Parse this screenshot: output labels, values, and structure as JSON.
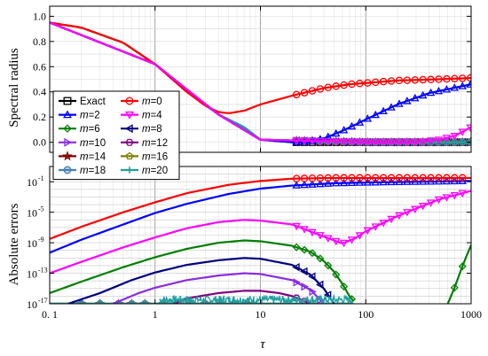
{
  "chart_data": [
    {
      "type": "line",
      "panel": "top",
      "ylabel": "Spectral radius",
      "xscale": "log",
      "xlim": [
        0.1,
        1000
      ],
      "ylim": [
        -0.08,
        1.08
      ],
      "yticks": [
        0.0,
        0.2,
        0.4,
        0.6,
        0.8,
        1.0
      ],
      "ytick_labels": [
        "0.0",
        "0.2",
        "0.4",
        "0.6",
        "0.8",
        "1.0"
      ],
      "grid": true,
      "series": [
        {
          "name": "Exact",
          "color": "#000000",
          "marker": "square",
          "x": [
            0.1,
            0.2,
            0.5,
            1,
            2,
            4,
            7,
            10,
            20,
            50,
            100,
            1000
          ],
          "y": [
            0.95,
            0.91,
            0.79,
            0.62,
            0.4,
            0.22,
            0.12,
            0.02,
            0.0,
            0.0,
            0.0,
            0.0
          ]
        },
        {
          "name": "m=0",
          "color": "#ff0000",
          "marker": "circle",
          "x": [
            0.1,
            0.2,
            0.5,
            1,
            2,
            3,
            4,
            5,
            7,
            10,
            20,
            40,
            70,
            100,
            200,
            500,
            1000
          ],
          "y": [
            0.95,
            0.91,
            0.79,
            0.62,
            0.4,
            0.29,
            0.24,
            0.23,
            0.25,
            0.3,
            0.37,
            0.43,
            0.46,
            0.47,
            0.49,
            0.5,
            0.51
          ]
        },
        {
          "name": "m=2",
          "color": "#0000ff",
          "marker": "triangle-up",
          "x": [
            0.1,
            1,
            4,
            10,
            20,
            30,
            40,
            60,
            100,
            200,
            400,
            1000
          ],
          "y": [
            0.95,
            0.62,
            0.22,
            0.02,
            0.0,
            0.01,
            0.03,
            0.09,
            0.18,
            0.3,
            0.39,
            0.46
          ]
        },
        {
          "name": "m=4",
          "color": "#ff00ff",
          "marker": "triangle-down",
          "x": [
            0.1,
            1,
            4,
            10,
            100,
            300,
            500,
            700,
            1000
          ],
          "y": [
            0.95,
            0.62,
            0.22,
            0.02,
            0.0,
            0.0,
            0.02,
            0.05,
            0.12
          ]
        },
        {
          "name": "m=6",
          "color": "#008000",
          "marker": "diamond",
          "x": [
            0.1,
            1,
            4,
            10,
            100,
            1000
          ],
          "y": [
            0.95,
            0.62,
            0.22,
            0.02,
            0.0,
            0.0
          ]
        },
        {
          "name": "m=8",
          "color": "#000080",
          "marker": "triangle-left",
          "x": [
            0.1,
            1,
            4,
            10,
            100,
            1000
          ],
          "y": [
            0.95,
            0.62,
            0.22,
            0.02,
            0.0,
            0.0
          ]
        },
        {
          "name": "m=10",
          "color": "#8a2be2",
          "marker": "triangle-right",
          "x": [
            0.1,
            1,
            4,
            10,
            100,
            1000
          ],
          "y": [
            0.95,
            0.62,
            0.22,
            0.02,
            0.0,
            0.0
          ]
        },
        {
          "name": "m=12",
          "color": "#800080",
          "marker": "hexagon",
          "x": [
            0.1,
            1,
            4,
            10,
            100,
            1000
          ],
          "y": [
            0.95,
            0.62,
            0.22,
            0.02,
            0.0,
            0.0
          ]
        },
        {
          "name": "m=14",
          "color": "#800000",
          "marker": "star",
          "x": [
            0.1,
            1,
            4,
            10,
            100,
            1000
          ],
          "y": [
            0.95,
            0.62,
            0.22,
            0.02,
            0.0,
            0.0
          ]
        },
        {
          "name": "m=16",
          "color": "#808000",
          "marker": "pentagon",
          "x": [
            0.1,
            1,
            4,
            10,
            100,
            1000
          ],
          "y": [
            0.95,
            0.62,
            0.22,
            0.02,
            0.0,
            0.0
          ]
        },
        {
          "name": "m=18",
          "color": "#4682b4",
          "marker": "circle-dot",
          "x": [
            0.1,
            1,
            4,
            10,
            100,
            1000
          ],
          "y": [
            0.95,
            0.62,
            0.22,
            0.02,
            0.0,
            0.0
          ]
        },
        {
          "name": "m=20",
          "color": "#20a0a0",
          "marker": "cross",
          "x": [
            0.1,
            0.2,
            0.5,
            1,
            2,
            4,
            7,
            10,
            20,
            50,
            100,
            1000
          ],
          "y": [
            0.95,
            0.91,
            0.79,
            0.62,
            0.4,
            0.22,
            0.12,
            0.02,
            0.0,
            0.0,
            0.0,
            0.0
          ]
        }
      ]
    },
    {
      "type": "line",
      "panel": "bottom",
      "ylabel": "Absolute errors",
      "xlabel": "τ",
      "xscale": "log",
      "yscale": "log",
      "xlim": [
        0.1,
        1000
      ],
      "ylim_exp": [
        -17,
        1
      ],
      "xticks": [
        0.1,
        1,
        10,
        100,
        1000
      ],
      "xtick_labels": [
        "0. 1",
        "1",
        "10",
        "100",
        "1000"
      ],
      "ytick_exps": [
        -17,
        -13,
        -9,
        -5,
        -1
      ],
      "ytick_bases": [
        "10",
        "10",
        "10",
        "10",
        "10"
      ],
      "ytick_powers": [
        "-17",
        "-13",
        "-9",
        "-5",
        "-1"
      ],
      "grid": true,
      "series_log10": [
        {
          "name": "m=0",
          "color": "#ff0000",
          "marker": "circle",
          "x": [
            0.1,
            0.2,
            0.5,
            1,
            2,
            5,
            10,
            20,
            50,
            100,
            300,
            1000
          ],
          "y": [
            -8.5,
            -6.9,
            -5.0,
            -3.7,
            -2.5,
            -1.4,
            -0.9,
            -0.6,
            -0.5,
            -0.5,
            -0.5,
            -0.5
          ]
        },
        {
          "name": "m=2",
          "color": "#0000ff",
          "marker": "triangle-up",
          "x": [
            0.1,
            0.2,
            0.5,
            1,
            2,
            5,
            10,
            20,
            50,
            100,
            300,
            1000
          ],
          "y": [
            -10.3,
            -8.6,
            -6.6,
            -5.1,
            -3.9,
            -2.6,
            -1.9,
            -1.5,
            -1.2,
            -1.1,
            -1.0,
            -0.9
          ]
        },
        {
          "name": "m=4",
          "color": "#ff00ff",
          "marker": "triangle-down",
          "x": [
            0.1,
            0.2,
            0.5,
            1,
            2,
            4,
            7,
            10,
            20,
            40,
            60,
            80,
            100,
            200,
            500,
            1000
          ],
          "y": [
            -13.0,
            -11.5,
            -9.6,
            -8.3,
            -7.1,
            -6.3,
            -6.0,
            -6.1,
            -6.6,
            -8.2,
            -9.1,
            -8.4,
            -7.5,
            -5.5,
            -3.3,
            -2.2
          ]
        },
        {
          "name": "m=6",
          "color": "#008000",
          "marker": "diamond",
          "x": [
            0.1,
            0.2,
            0.5,
            1,
            2,
            4,
            7,
            10,
            20,
            30,
            40,
            50,
            60,
            70,
            80
          ],
          "y": [
            -15.6,
            -14.1,
            -12.2,
            -10.9,
            -9.8,
            -9.0,
            -8.7,
            -8.8,
            -9.4,
            -10.2,
            -11.4,
            -12.8,
            -14.4,
            -16.0,
            -17.0
          ]
        },
        {
          "name": "m=6 (tail)",
          "color": "#008000",
          "marker": "diamond",
          "x": [
            600,
            700,
            800,
            900,
            1000
          ],
          "y": [
            -17.0,
            -14.8,
            -12.6,
            -10.8,
            -9.3
          ]
        },
        {
          "name": "m=8",
          "color": "#000080",
          "marker": "triangle-left",
          "x": [
            0.15,
            0.3,
            0.6,
            1,
            2,
            4,
            7,
            10,
            20,
            30,
            40,
            50
          ],
          "y": [
            -17.0,
            -15.6,
            -13.9,
            -12.9,
            -11.9,
            -11.3,
            -11.0,
            -11.1,
            -11.9,
            -13.2,
            -15.0,
            -17.0
          ]
        },
        {
          "name": "m=10",
          "color": "#8a2be2",
          "marker": "triangle-right",
          "x": [
            0.4,
            0.7,
            1,
            2,
            4,
            7,
            10,
            20,
            30,
            40
          ],
          "y": [
            -17.0,
            -15.6,
            -14.9,
            -13.9,
            -13.3,
            -13.0,
            -13.1,
            -13.9,
            -15.2,
            -17.0
          ]
        },
        {
          "name": "m=12",
          "color": "#800080",
          "marker": "hexagon",
          "x": [
            1.5,
            2,
            4,
            7,
            10,
            15,
            20,
            30
          ],
          "y": [
            -17.0,
            -16.3,
            -15.6,
            -15.3,
            -15.3,
            -15.6,
            -16.0,
            -17.0
          ]
        },
        {
          "name": "m=14",
          "color": "#800000",
          "marker": "star",
          "x": [
            0.1,
            1,
            10,
            80
          ],
          "y": [
            -17.0,
            -17.0,
            -17.0,
            -17.0
          ]
        },
        {
          "name": "m=16",
          "color": "#808000",
          "marker": "pentagon",
          "x": [
            0.1,
            1,
            10,
            80
          ],
          "y": [
            -17.0,
            -17.0,
            -17.0,
            -17.0
          ]
        },
        {
          "name": "m=18",
          "color": "#4682b4",
          "marker": "circle-dot",
          "x": [
            0.1,
            1,
            10,
            80
          ],
          "y": [
            -17.0,
            -17.0,
            -17.0,
            -17.0
          ]
        },
        {
          "name": "m=20",
          "color": "#20a0a0",
          "marker": "cross",
          "x": [
            0.1,
            1,
            10,
            80
          ],
          "y": [
            -17.0,
            -17.0,
            -17.0,
            -17.0
          ]
        }
      ]
    }
  ],
  "legend": {
    "placement": "left-center",
    "entries": [
      {
        "label": "Exact",
        "color": "#000000",
        "marker": "square"
      },
      {
        "label": "m=0",
        "color": "#ff0000",
        "marker": "circle"
      },
      {
        "label": "m=2",
        "color": "#0000ff",
        "marker": "triangle-up"
      },
      {
        "label": "m=4",
        "color": "#ff00ff",
        "marker": "triangle-down"
      },
      {
        "label": "m=6",
        "color": "#008000",
        "marker": "diamond"
      },
      {
        "label": "m=8",
        "color": "#000080",
        "marker": "triangle-left"
      },
      {
        "label": "m=10",
        "color": "#8a2be2",
        "marker": "triangle-right"
      },
      {
        "label": "m=12",
        "color": "#800080",
        "marker": "hexagon"
      },
      {
        "label": "m=14",
        "color": "#800000",
        "marker": "star"
      },
      {
        "label": "m=16",
        "color": "#808000",
        "marker": "pentagon"
      },
      {
        "label": "m=18",
        "color": "#4682b4",
        "marker": "circle-dot"
      },
      {
        "label": "m=20",
        "color": "#20a0a0",
        "marker": "cross"
      }
    ]
  }
}
